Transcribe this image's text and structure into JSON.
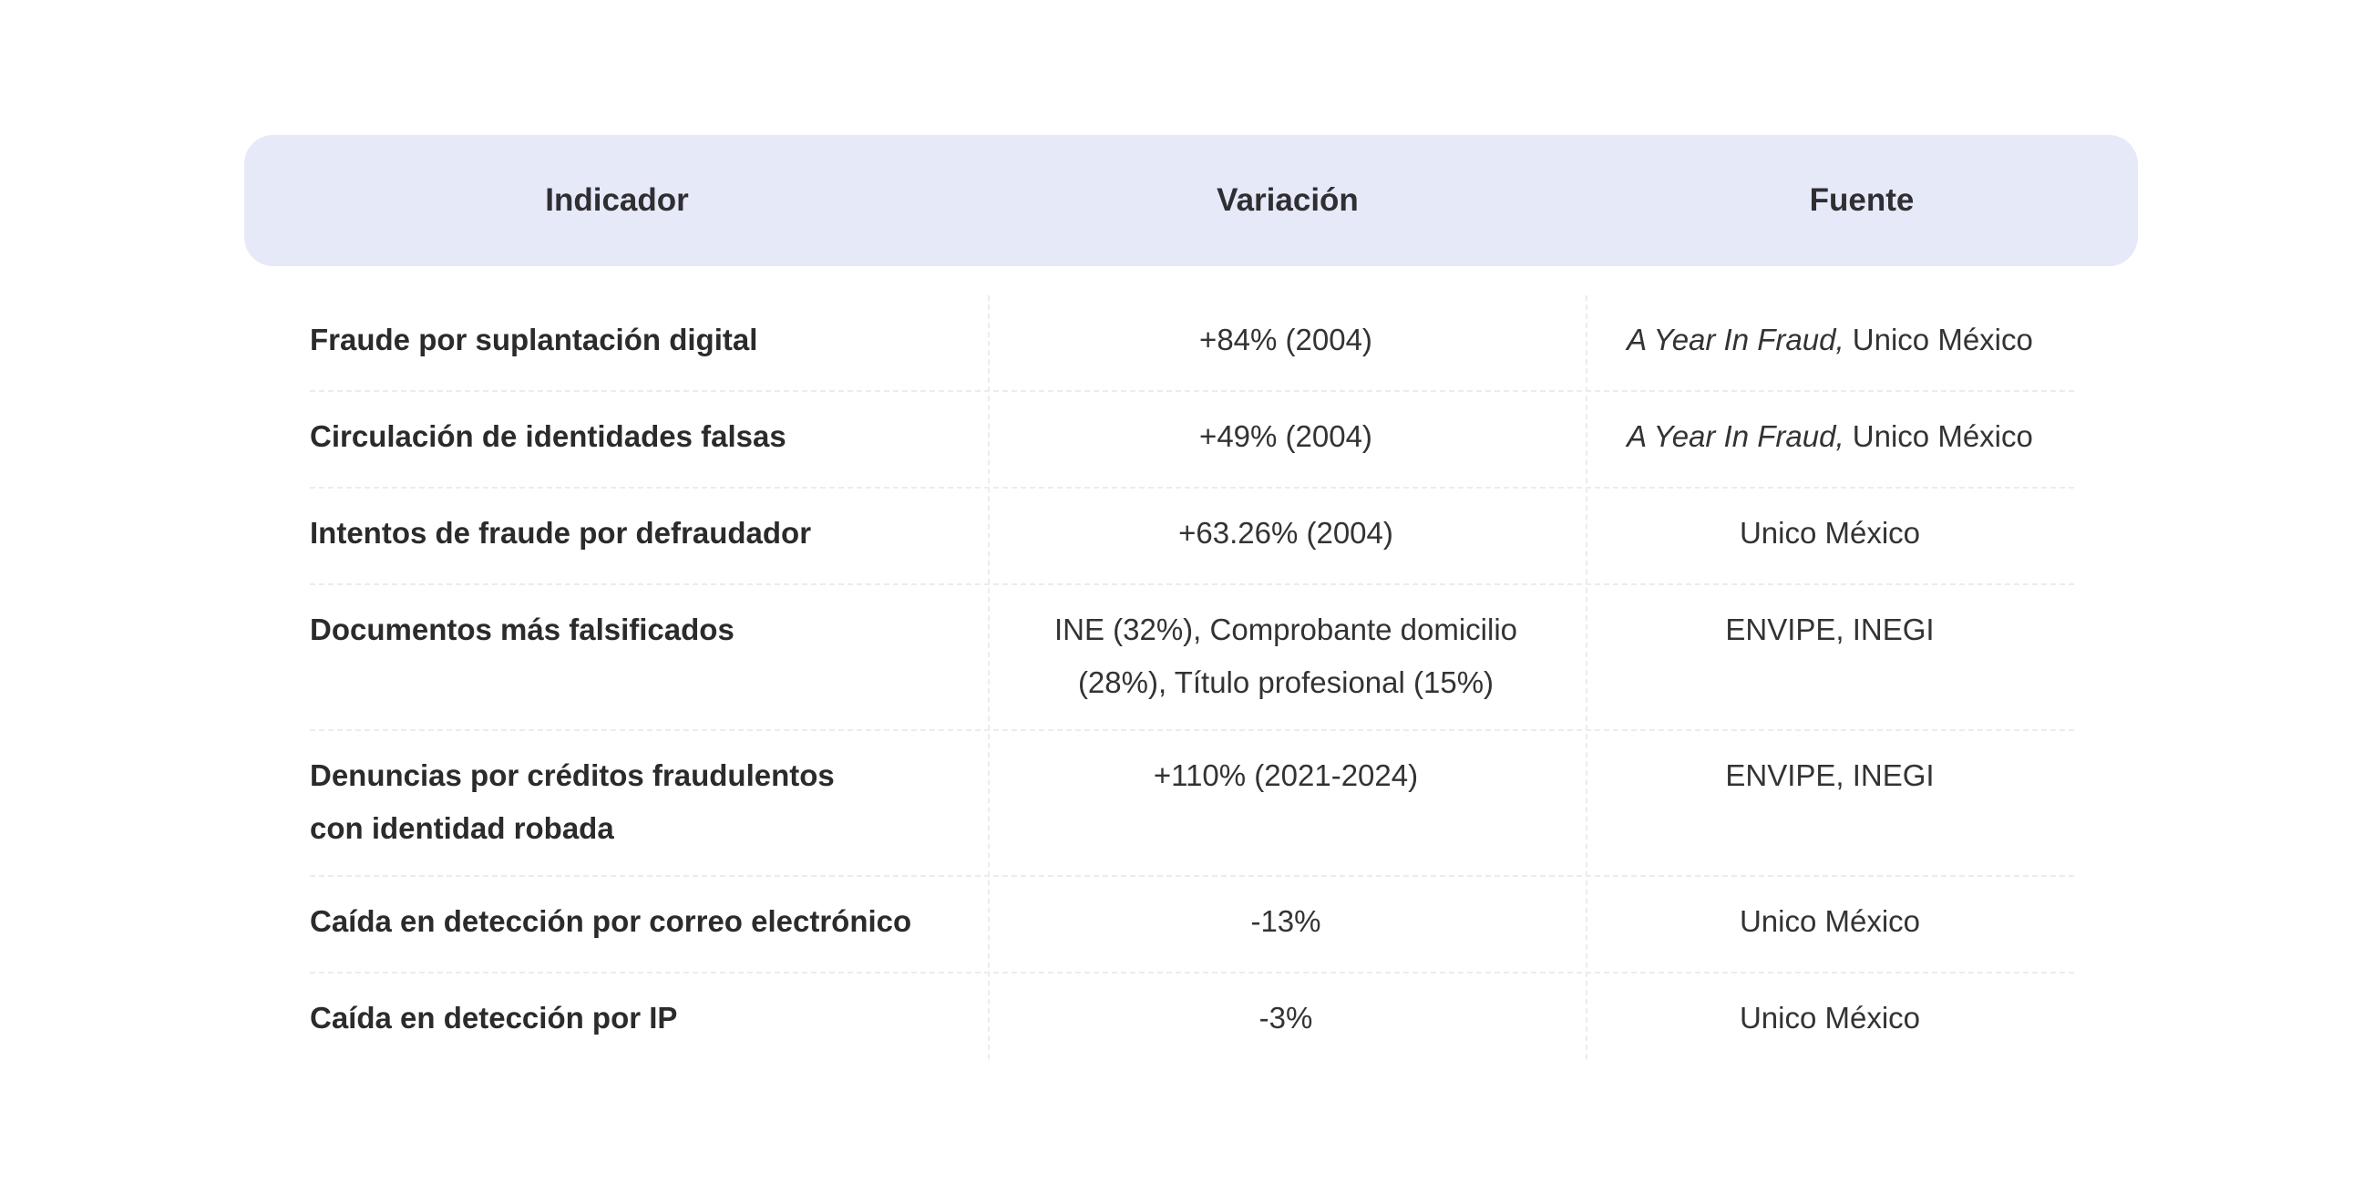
{
  "table": {
    "headers": {
      "indicator": "Indicador",
      "variation": "Variación",
      "source": "Fuente"
    },
    "rows": [
      {
        "indicator": "Fraude por suplantación digital",
        "variation": "+84% (2004)",
        "source_italic": "A Year In Fraud,",
        "source": " Unico México"
      },
      {
        "indicator": "Circulación de identidades falsas",
        "variation": "+49% (2004)",
        "source_italic": "A Year In Fraud,",
        "source": " Unico México"
      },
      {
        "indicator": "Intentos de fraude por defraudador",
        "variation": "+63.26% (2004)",
        "source_italic": "",
        "source": "Unico México"
      },
      {
        "indicator": "Documentos más falsificados",
        "variation": "INE (32%), Comprobante domicilio (28%), Título profesional (15%)",
        "source_italic": "",
        "source": "ENVIPE, INEGI"
      },
      {
        "indicator": "Denuncias por créditos fraudulentos con identidad robada",
        "variation": "+110% (2021-2024)",
        "source_italic": "",
        "source": "ENVIPE, INEGI"
      },
      {
        "indicator": "Caída en detección por correo electrónico",
        "variation": "-13%",
        "source_italic": "",
        "source": "Unico México"
      },
      {
        "indicator": "Caída en detección por IP",
        "variation": "-3%",
        "source_italic": "",
        "source": "Unico México"
      }
    ]
  }
}
